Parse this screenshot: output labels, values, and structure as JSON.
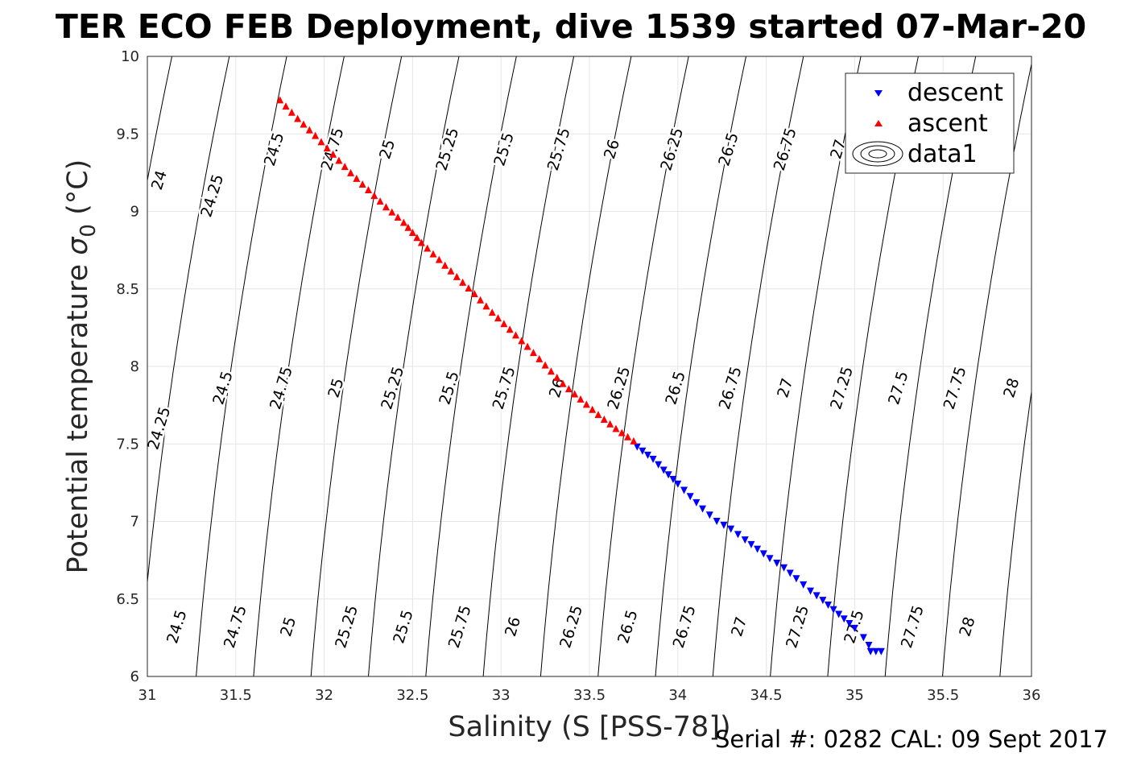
{
  "chart_data": {
    "type": "scatter",
    "title": "TER ECO FEB Deployment, dive 1539 started 07-Mar-20",
    "xlabel": "Salinity (S [PSS-78])",
    "ylabel_main": "Potential temperature ",
    "ylabel_symbol": "σ",
    "ylabel_sub": "0",
    "ylabel_unit": " (°C)",
    "xlim": [
      31,
      36
    ],
    "ylim": [
      6,
      10
    ],
    "xticks": [
      "31",
      "31.5",
      "32",
      "32.5",
      "33",
      "33.5",
      "34",
      "34.5",
      "35",
      "35.5",
      "36"
    ],
    "yticks": [
      "6",
      "6.5",
      "7",
      "7.5",
      "8",
      "8.5",
      "9",
      "9.5",
      "10"
    ],
    "grid": true,
    "legend_position": "top-right",
    "legend": [
      {
        "name": "descent",
        "marker": "triangle-down",
        "color": "#0000ff"
      },
      {
        "name": "ascent",
        "marker": "triangle-up",
        "color": "#ff0000"
      },
      {
        "name": "data1",
        "marker": "contour",
        "color": "#000000"
      }
    ],
    "series": [
      {
        "name": "descent",
        "color": "#0000ff",
        "points": [
          {
            "x": 33.77,
            "y": 7.48
          },
          {
            "x": 33.86,
            "y": 7.4
          },
          {
            "x": 33.92,
            "y": 7.33
          },
          {
            "x": 34.0,
            "y": 7.24
          },
          {
            "x": 34.07,
            "y": 7.16
          },
          {
            "x": 34.14,
            "y": 7.08
          },
          {
            "x": 34.22,
            "y": 7.0
          },
          {
            "x": 34.3,
            "y": 6.95
          },
          {
            "x": 34.38,
            "y": 6.88
          },
          {
            "x": 34.45,
            "y": 6.82
          },
          {
            "x": 34.52,
            "y": 6.76
          },
          {
            "x": 34.6,
            "y": 6.7
          },
          {
            "x": 34.67,
            "y": 6.63
          },
          {
            "x": 34.75,
            "y": 6.55
          },
          {
            "x": 34.82,
            "y": 6.49
          },
          {
            "x": 34.88,
            "y": 6.43
          },
          {
            "x": 34.94,
            "y": 6.37
          },
          {
            "x": 35.0,
            "y": 6.31
          },
          {
            "x": 35.05,
            "y": 6.25
          },
          {
            "x": 35.08,
            "y": 6.2
          },
          {
            "x": 35.09,
            "y": 6.16
          },
          {
            "x": 35.12,
            "y": 6.16
          },
          {
            "x": 35.15,
            "y": 6.16
          }
        ]
      },
      {
        "name": "ascent",
        "color": "#ff0000",
        "points": [
          {
            "x": 31.75,
            "y": 9.72
          },
          {
            "x": 31.85,
            "y": 9.6
          },
          {
            "x": 31.95,
            "y": 9.49
          },
          {
            "x": 32.05,
            "y": 9.37
          },
          {
            "x": 32.15,
            "y": 9.25
          },
          {
            "x": 32.25,
            "y": 9.14
          },
          {
            "x": 32.35,
            "y": 9.03
          },
          {
            "x": 32.45,
            "y": 8.93
          },
          {
            "x": 32.55,
            "y": 8.8
          },
          {
            "x": 32.65,
            "y": 8.69
          },
          {
            "x": 32.75,
            "y": 8.58
          },
          {
            "x": 32.85,
            "y": 8.47
          },
          {
            "x": 32.95,
            "y": 8.35
          },
          {
            "x": 33.05,
            "y": 8.24
          },
          {
            "x": 33.15,
            "y": 8.13
          },
          {
            "x": 33.25,
            "y": 8.01
          },
          {
            "x": 33.35,
            "y": 7.89
          },
          {
            "x": 33.45,
            "y": 7.79
          },
          {
            "x": 33.55,
            "y": 7.69
          },
          {
            "x": 33.65,
            "y": 7.6
          },
          {
            "x": 33.75,
            "y": 7.52
          }
        ]
      }
    ],
    "contour_levels": [
      "24",
      "24.25",
      "24.5",
      "24.75",
      "25",
      "25.25",
      "25.5",
      "25.75",
      "26",
      "26.25",
      "26.5",
      "26.75",
      "27",
      "27.25",
      "27.5",
      "27.75",
      "28"
    ],
    "contour_labels": [
      {
        "text": "24",
        "x": 31.07,
        "y": 9.2
      },
      {
        "text": "24.25",
        "x": 31.37,
        "y": 9.1
      },
      {
        "text": "24.5",
        "x": 31.72,
        "y": 9.4
      },
      {
        "text": "24.75",
        "x": 32.05,
        "y": 9.4
      },
      {
        "text": "25",
        "x": 32.36,
        "y": 9.4
      },
      {
        "text": "25.25",
        "x": 32.7,
        "y": 9.4
      },
      {
        "text": "25.5",
        "x": 33.02,
        "y": 9.4
      },
      {
        "text": "25.75",
        "x": 33.33,
        "y": 9.4
      },
      {
        "text": "26",
        "x": 33.63,
        "y": 9.4
      },
      {
        "text": "26.25",
        "x": 33.97,
        "y": 9.4
      },
      {
        "text": "26.5",
        "x": 34.29,
        "y": 9.4
      },
      {
        "text": "26.75",
        "x": 34.61,
        "y": 9.4
      },
      {
        "text": "27",
        "x": 34.91,
        "y": 9.4
      },
      {
        "text": "24.25",
        "x": 31.07,
        "y": 7.6
      },
      {
        "text": "24.5",
        "x": 31.43,
        "y": 7.86
      },
      {
        "text": "24.75",
        "x": 31.76,
        "y": 7.86
      },
      {
        "text": "25",
        "x": 32.07,
        "y": 7.86
      },
      {
        "text": "25.25",
        "x": 32.39,
        "y": 7.86
      },
      {
        "text": "25.5",
        "x": 32.71,
        "y": 7.86
      },
      {
        "text": "25.75",
        "x": 33.02,
        "y": 7.86
      },
      {
        "text": "26",
        "x": 33.32,
        "y": 7.86
      },
      {
        "text": "26.25",
        "x": 33.67,
        "y": 7.86
      },
      {
        "text": "26.5",
        "x": 33.99,
        "y": 7.86
      },
      {
        "text": "26.75",
        "x": 34.3,
        "y": 7.86
      },
      {
        "text": "27",
        "x": 34.61,
        "y": 7.86
      },
      {
        "text": "27.25",
        "x": 34.93,
        "y": 7.86
      },
      {
        "text": "27.5",
        "x": 35.25,
        "y": 7.86
      },
      {
        "text": "27.75",
        "x": 35.57,
        "y": 7.86
      },
      {
        "text": "28",
        "x": 35.89,
        "y": 7.86
      },
      {
        "text": "24.5",
        "x": 31.17,
        "y": 6.32
      },
      {
        "text": "24.75",
        "x": 31.5,
        "y": 6.32
      },
      {
        "text": "25",
        "x": 31.8,
        "y": 6.32
      },
      {
        "text": "25.25",
        "x": 32.13,
        "y": 6.32
      },
      {
        "text": "25.5",
        "x": 32.45,
        "y": 6.32
      },
      {
        "text": "25.75",
        "x": 32.77,
        "y": 6.32
      },
      {
        "text": "26",
        "x": 33.07,
        "y": 6.32
      },
      {
        "text": "26.25",
        "x": 33.4,
        "y": 6.32
      },
      {
        "text": "26.5",
        "x": 33.72,
        "y": 6.32
      },
      {
        "text": "26.75",
        "x": 34.04,
        "y": 6.32
      },
      {
        "text": "27",
        "x": 34.35,
        "y": 6.32
      },
      {
        "text": "27.25",
        "x": 34.68,
        "y": 6.32
      },
      {
        "text": "27.5",
        "x": 35.0,
        "y": 6.32
      },
      {
        "text": "27.75",
        "x": 35.33,
        "y": 6.32
      },
      {
        "text": "28",
        "x": 35.64,
        "y": 6.32
      }
    ]
  },
  "footer": {
    "serial": "Serial #: 0282  CAL: 09 Sept 2017"
  }
}
